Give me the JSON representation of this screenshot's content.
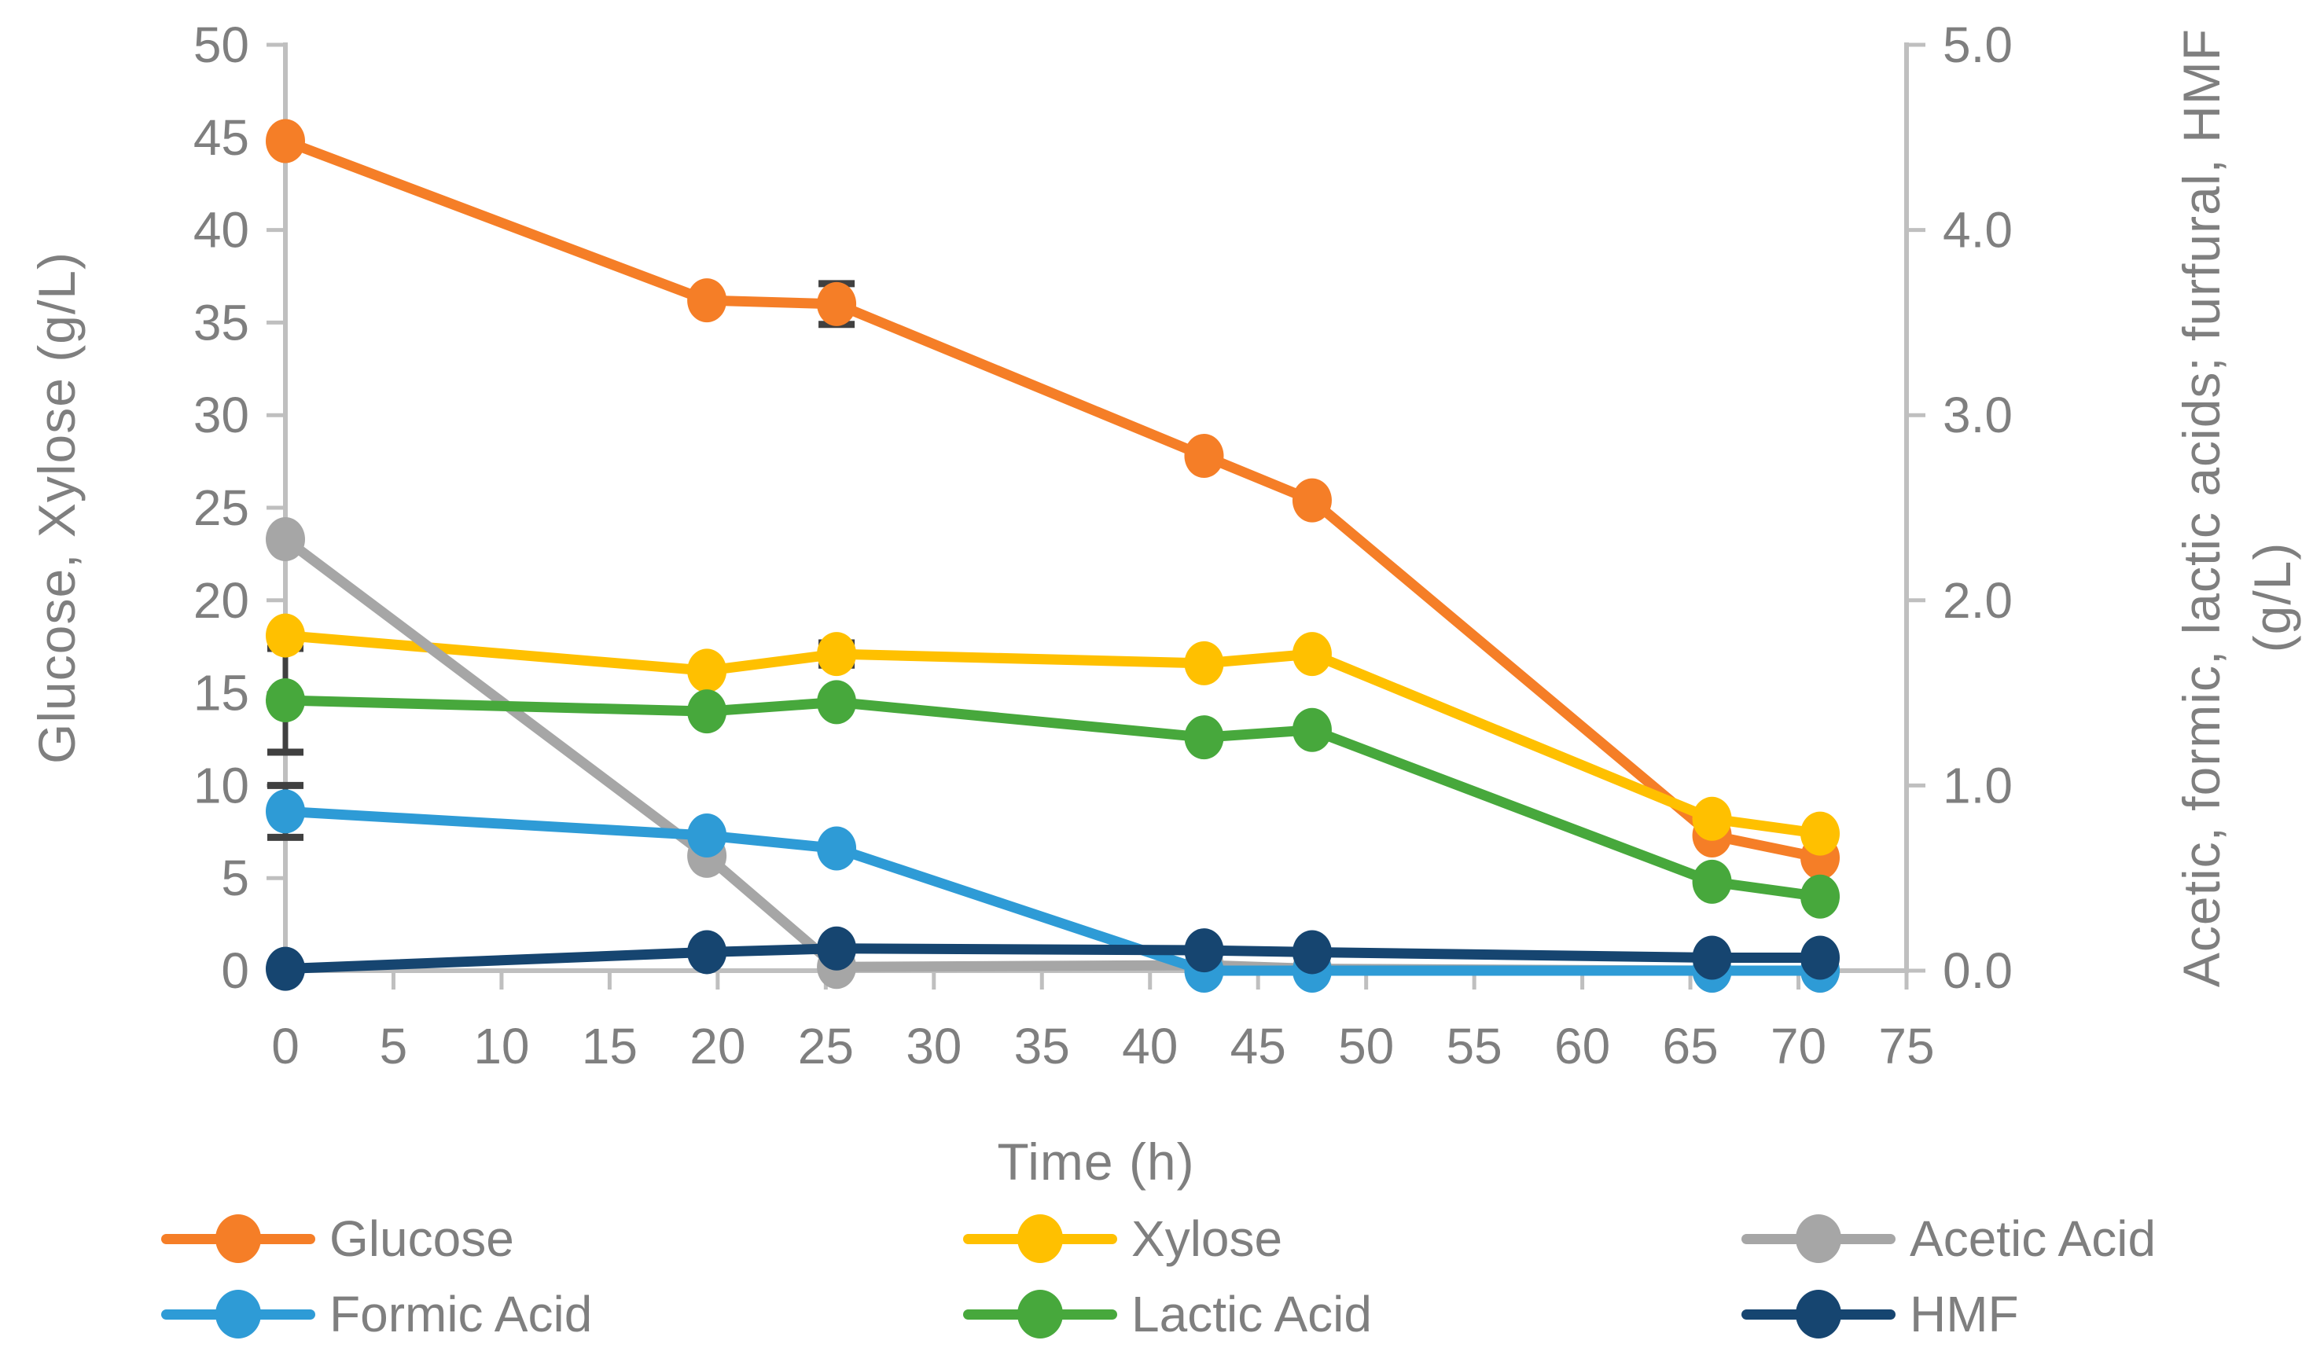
{
  "axes": {
    "x": {
      "title": "Time (h)",
      "min": 0,
      "max": 75,
      "tick_step": 5,
      "tick_labels": [
        "0",
        "5",
        "10",
        "15",
        "20",
        "25",
        "30",
        "35",
        "40",
        "45",
        "50",
        "55",
        "60",
        "65",
        "70",
        "75"
      ]
    },
    "y_left": {
      "title": "Glucose, Xylose (g/L)",
      "min": 0,
      "max": 50,
      "tick_step": 5,
      "tick_labels": [
        "0",
        "5",
        "10",
        "15",
        "20",
        "25",
        "30",
        "35",
        "40",
        "45",
        "50"
      ]
    },
    "y_right": {
      "title": "Acetic, formic, lactic acids; furfural, HMF",
      "title_line2": "(g/L)",
      "min": 0,
      "max": 5,
      "tick_step": 1,
      "tick_labels": [
        "0.0",
        "1.0",
        "2.0",
        "3.0",
        "4.0",
        "5.0"
      ]
    }
  },
  "chart_data": {
    "type": "line",
    "title": "",
    "xlabel": "Time (h)",
    "ylabel_left": "Glucose, Xylose (g/L)",
    "ylabel_right": "Acetic, formic, lactic acids; furfural, HMF (g/L)",
    "x": [
      0,
      19.5,
      25.5,
      42.5,
      47.5,
      66,
      71
    ],
    "xlim": [
      0,
      75
    ],
    "ylim_left": [
      0,
      50
    ],
    "ylim_right": [
      0,
      5
    ],
    "grid": false,
    "legend_position": "bottom",
    "series": [
      {
        "name": "Glucose",
        "axis": "left",
        "color": "#F57E27",
        "values": [
          44.8,
          36.2,
          36.0,
          27.8,
          25.4,
          7.3,
          6.1
        ]
      },
      {
        "name": "Xylose",
        "axis": "left",
        "color": "#FFC000",
        "values": [
          18.1,
          16.2,
          17.1,
          16.6,
          17.1,
          8.2,
          7.4
        ]
      },
      {
        "name": "Acetic Acid",
        "axis": "right",
        "color": "#A6A6A6",
        "values": [
          2.33,
          0.62,
          0.02,
          0.03,
          0.01,
          0.0,
          0.0
        ]
      },
      {
        "name": "Formic Acid",
        "axis": "right",
        "color": "#2E9BD6",
        "values": [
          0.86,
          0.73,
          0.66,
          0.0,
          0.0,
          0.0,
          0.0
        ]
      },
      {
        "name": "Lactic Acid",
        "axis": "right",
        "color": "#47A83C",
        "values": [
          1.46,
          1.4,
          1.45,
          1.26,
          1.3,
          0.48,
          0.4
        ]
      },
      {
        "name": "HMF",
        "axis": "right",
        "color": "#164570",
        "values": [
          0.01,
          0.1,
          0.12,
          0.11,
          0.1,
          0.07,
          0.07
        ]
      }
    ],
    "error_bars": [
      {
        "series": "Glucose",
        "x": 25.5,
        "plus_minus": 1.1
      },
      {
        "series": "Xylose",
        "x": 25.5,
        "plus_minus": 0.6
      },
      {
        "series": "Lactic Acid",
        "x": 0,
        "plus_minus": 0.28
      },
      {
        "series": "Formic Acid",
        "x": 0,
        "plus_minus": 0.14
      }
    ],
    "legend_rows": [
      [
        "Glucose",
        "Xylose",
        "Acetic Acid"
      ],
      [
        "Formic Acid",
        "Lactic Acid",
        "HMF"
      ]
    ]
  },
  "styles": {
    "axis_line_color": "#BFBFBF",
    "tick_text_color": "#7F7F7F",
    "axis_title_color": "#7F7F7F",
    "error_bar_color": "#404040",
    "background": "#FFFFFF"
  }
}
